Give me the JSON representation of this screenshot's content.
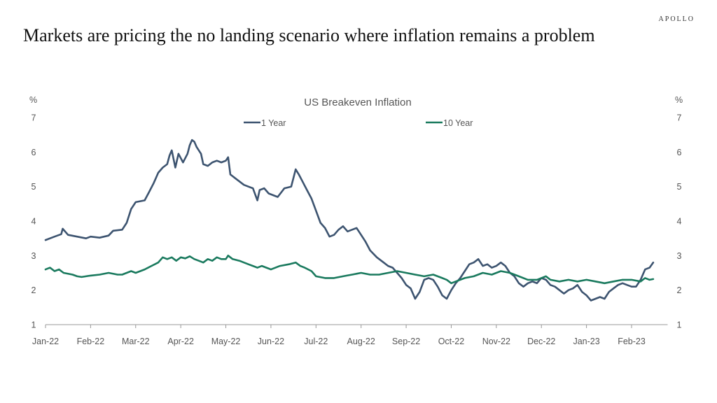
{
  "brand": "APOLLO",
  "headline": "Markets are pricing the no landing scenario where inflation remains a problem",
  "colors": {
    "one_year": "#3d5470",
    "ten_year": "#1a7a5e",
    "axis": "#999999",
    "text": "#555555"
  },
  "chart_data": {
    "type": "line",
    "title": "US Breakeven Inflation",
    "ylabel_left": "%",
    "ylabel_right": "%",
    "ylim": [
      1,
      7
    ],
    "yticks": [
      1,
      2,
      3,
      4,
      5,
      6,
      7
    ],
    "x_range": [
      0,
      13.8
    ],
    "x_ticks": [
      {
        "x": 0,
        "label": "Jan-22"
      },
      {
        "x": 1,
        "label": "Feb-22"
      },
      {
        "x": 2,
        "label": "Mar-22"
      },
      {
        "x": 3,
        "label": "Apr-22"
      },
      {
        "x": 4,
        "label": "May-22"
      },
      {
        "x": 5,
        "label": "Jun-22"
      },
      {
        "x": 6,
        "label": "Jul-22"
      },
      {
        "x": 7,
        "label": "Aug-22"
      },
      {
        "x": 8,
        "label": "Sep-22"
      },
      {
        "x": 9,
        "label": "Oct-22"
      },
      {
        "x": 10,
        "label": "Nov-22"
      },
      {
        "x": 11,
        "label": "Dec-22"
      },
      {
        "x": 12,
        "label": "Jan-23"
      },
      {
        "x": 13,
        "label": "Feb-23"
      }
    ],
    "legend_position": "top-center",
    "grid": false,
    "series": [
      {
        "name": "1 Year",
        "color": "#3d5470",
        "points": [
          [
            0.0,
            3.45
          ],
          [
            0.2,
            3.55
          ],
          [
            0.35,
            3.62
          ],
          [
            0.38,
            3.78
          ],
          [
            0.5,
            3.6
          ],
          [
            0.7,
            3.55
          ],
          [
            0.9,
            3.5
          ],
          [
            1.0,
            3.55
          ],
          [
            1.2,
            3.52
          ],
          [
            1.4,
            3.58
          ],
          [
            1.5,
            3.72
          ],
          [
            1.7,
            3.75
          ],
          [
            1.8,
            3.95
          ],
          [
            1.9,
            4.35
          ],
          [
            2.0,
            4.55
          ],
          [
            2.2,
            4.6
          ],
          [
            2.3,
            4.85
          ],
          [
            2.4,
            5.1
          ],
          [
            2.5,
            5.4
          ],
          [
            2.6,
            5.55
          ],
          [
            2.7,
            5.65
          ],
          [
            2.75,
            5.9
          ],
          [
            2.8,
            6.05
          ],
          [
            2.88,
            5.55
          ],
          [
            2.95,
            5.95
          ],
          [
            3.05,
            5.7
          ],
          [
            3.15,
            5.95
          ],
          [
            3.2,
            6.2
          ],
          [
            3.25,
            6.35
          ],
          [
            3.3,
            6.3
          ],
          [
            3.35,
            6.15
          ],
          [
            3.45,
            5.95
          ],
          [
            3.5,
            5.65
          ],
          [
            3.6,
            5.6
          ],
          [
            3.7,
            5.7
          ],
          [
            3.8,
            5.75
          ],
          [
            3.9,
            5.7
          ],
          [
            4.0,
            5.75
          ],
          [
            4.05,
            5.85
          ],
          [
            4.1,
            5.35
          ],
          [
            4.2,
            5.25
          ],
          [
            4.3,
            5.15
          ],
          [
            4.4,
            5.05
          ],
          [
            4.5,
            5.0
          ],
          [
            4.6,
            4.95
          ],
          [
            4.7,
            4.6
          ],
          [
            4.75,
            4.9
          ],
          [
            4.85,
            4.95
          ],
          [
            4.95,
            4.8
          ],
          [
            5.05,
            4.75
          ],
          [
            5.15,
            4.7
          ],
          [
            5.3,
            4.95
          ],
          [
            5.45,
            5.0
          ],
          [
            5.55,
            5.5
          ],
          [
            5.62,
            5.35
          ],
          [
            5.7,
            5.15
          ],
          [
            5.8,
            4.9
          ],
          [
            5.9,
            4.65
          ],
          [
            6.0,
            4.3
          ],
          [
            6.1,
            3.95
          ],
          [
            6.2,
            3.8
          ],
          [
            6.3,
            3.55
          ],
          [
            6.4,
            3.6
          ],
          [
            6.5,
            3.75
          ],
          [
            6.6,
            3.85
          ],
          [
            6.7,
            3.7
          ],
          [
            6.8,
            3.75
          ],
          [
            6.9,
            3.8
          ],
          [
            7.0,
            3.6
          ],
          [
            7.1,
            3.4
          ],
          [
            7.2,
            3.15
          ],
          [
            7.35,
            2.95
          ],
          [
            7.5,
            2.8
          ],
          [
            7.6,
            2.7
          ],
          [
            7.7,
            2.65
          ],
          [
            7.8,
            2.5
          ],
          [
            7.9,
            2.35
          ],
          [
            8.0,
            2.15
          ],
          [
            8.1,
            2.05
          ],
          [
            8.2,
            1.75
          ],
          [
            8.3,
            1.95
          ],
          [
            8.4,
            2.3
          ],
          [
            8.5,
            2.35
          ],
          [
            8.6,
            2.3
          ],
          [
            8.7,
            2.1
          ],
          [
            8.8,
            1.85
          ],
          [
            8.9,
            1.75
          ],
          [
            9.0,
            2.0
          ],
          [
            9.1,
            2.2
          ],
          [
            9.2,
            2.35
          ],
          [
            9.3,
            2.55
          ],
          [
            9.4,
            2.75
          ],
          [
            9.5,
            2.8
          ],
          [
            9.6,
            2.9
          ],
          [
            9.7,
            2.7
          ],
          [
            9.8,
            2.75
          ],
          [
            9.9,
            2.65
          ],
          [
            10.0,
            2.7
          ],
          [
            10.1,
            2.8
          ],
          [
            10.2,
            2.7
          ],
          [
            10.3,
            2.5
          ],
          [
            10.4,
            2.4
          ],
          [
            10.5,
            2.2
          ],
          [
            10.6,
            2.1
          ],
          [
            10.7,
            2.2
          ],
          [
            10.8,
            2.25
          ],
          [
            10.9,
            2.2
          ],
          [
            11.0,
            2.35
          ],
          [
            11.1,
            2.3
          ],
          [
            11.2,
            2.15
          ],
          [
            11.3,
            2.1
          ],
          [
            11.4,
            2.0
          ],
          [
            11.5,
            1.9
          ],
          [
            11.6,
            2.0
          ],
          [
            11.7,
            2.05
          ],
          [
            11.8,
            2.15
          ],
          [
            11.9,
            1.95
          ],
          [
            12.0,
            1.85
          ],
          [
            12.1,
            1.7
          ],
          [
            12.2,
            1.75
          ],
          [
            12.3,
            1.8
          ],
          [
            12.4,
            1.75
          ],
          [
            12.5,
            1.95
          ],
          [
            12.6,
            2.05
          ],
          [
            12.7,
            2.15
          ],
          [
            12.8,
            2.2
          ],
          [
            12.9,
            2.15
          ],
          [
            13.0,
            2.1
          ],
          [
            13.1,
            2.1
          ],
          [
            13.2,
            2.3
          ],
          [
            13.3,
            2.6
          ],
          [
            13.4,
            2.65
          ],
          [
            13.48,
            2.8
          ]
        ]
      },
      {
        "name": "10 Year",
        "color": "#1a7a5e",
        "points": [
          [
            0.0,
            2.6
          ],
          [
            0.1,
            2.65
          ],
          [
            0.2,
            2.55
          ],
          [
            0.3,
            2.6
          ],
          [
            0.4,
            2.5
          ],
          [
            0.6,
            2.45
          ],
          [
            0.7,
            2.4
          ],
          [
            0.8,
            2.38
          ],
          [
            1.0,
            2.42
          ],
          [
            1.2,
            2.45
          ],
          [
            1.4,
            2.5
          ],
          [
            1.6,
            2.45
          ],
          [
            1.7,
            2.45
          ],
          [
            1.8,
            2.5
          ],
          [
            1.9,
            2.55
          ],
          [
            2.0,
            2.5
          ],
          [
            2.2,
            2.6
          ],
          [
            2.35,
            2.7
          ],
          [
            2.5,
            2.8
          ],
          [
            2.6,
            2.95
          ],
          [
            2.7,
            2.9
          ],
          [
            2.8,
            2.95
          ],
          [
            2.9,
            2.85
          ],
          [
            3.0,
            2.95
          ],
          [
            3.1,
            2.92
          ],
          [
            3.2,
            2.98
          ],
          [
            3.3,
            2.9
          ],
          [
            3.4,
            2.85
          ],
          [
            3.5,
            2.8
          ],
          [
            3.6,
            2.9
          ],
          [
            3.7,
            2.85
          ],
          [
            3.8,
            2.95
          ],
          [
            3.9,
            2.9
          ],
          [
            4.0,
            2.9
          ],
          [
            4.05,
            3.0
          ],
          [
            4.15,
            2.9
          ],
          [
            4.3,
            2.85
          ],
          [
            4.4,
            2.8
          ],
          [
            4.5,
            2.75
          ],
          [
            4.6,
            2.7
          ],
          [
            4.7,
            2.65
          ],
          [
            4.8,
            2.7
          ],
          [
            4.9,
            2.65
          ],
          [
            5.0,
            2.6
          ],
          [
            5.2,
            2.7
          ],
          [
            5.4,
            2.75
          ],
          [
            5.55,
            2.8
          ],
          [
            5.65,
            2.7
          ],
          [
            5.75,
            2.65
          ],
          [
            5.9,
            2.55
          ],
          [
            6.0,
            2.4
          ],
          [
            6.2,
            2.35
          ],
          [
            6.4,
            2.35
          ],
          [
            6.6,
            2.4
          ],
          [
            6.8,
            2.45
          ],
          [
            7.0,
            2.5
          ],
          [
            7.2,
            2.45
          ],
          [
            7.4,
            2.45
          ],
          [
            7.6,
            2.5
          ],
          [
            7.8,
            2.55
          ],
          [
            8.0,
            2.5
          ],
          [
            8.2,
            2.45
          ],
          [
            8.4,
            2.4
          ],
          [
            8.6,
            2.45
          ],
          [
            8.8,
            2.35
          ],
          [
            8.9,
            2.3
          ],
          [
            9.0,
            2.2
          ],
          [
            9.1,
            2.25
          ],
          [
            9.3,
            2.35
          ],
          [
            9.5,
            2.4
          ],
          [
            9.7,
            2.5
          ],
          [
            9.9,
            2.45
          ],
          [
            10.1,
            2.55
          ],
          [
            10.3,
            2.5
          ],
          [
            10.5,
            2.4
          ],
          [
            10.7,
            2.3
          ],
          [
            10.9,
            2.3
          ],
          [
            11.0,
            2.35
          ],
          [
            11.1,
            2.4
          ],
          [
            11.2,
            2.3
          ],
          [
            11.4,
            2.25
          ],
          [
            11.6,
            2.3
          ],
          [
            11.8,
            2.25
          ],
          [
            12.0,
            2.3
          ],
          [
            12.2,
            2.25
          ],
          [
            12.4,
            2.2
          ],
          [
            12.6,
            2.25
          ],
          [
            12.8,
            2.3
          ],
          [
            13.0,
            2.3
          ],
          [
            13.2,
            2.25
          ],
          [
            13.3,
            2.35
          ],
          [
            13.4,
            2.3
          ],
          [
            13.48,
            2.32
          ]
        ]
      }
    ]
  }
}
